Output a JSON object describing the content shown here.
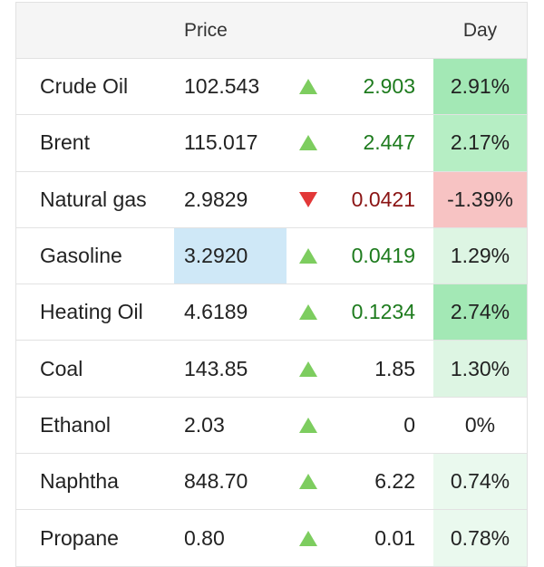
{
  "header": {
    "price_label": "Price",
    "day_label": "Day"
  },
  "colors": {
    "up_text": "#1e7b1e",
    "down_text": "#8b1414",
    "up_arrow": "#7dcd5f",
    "down_arrow": "#e23838",
    "highlight_price": "#cfe8f7",
    "positive_strong": "#a3e8b5",
    "negative": "#f7c3c3"
  },
  "rows": [
    {
      "name": "Crude Oil",
      "price": "102.543",
      "direction": "up",
      "change": "2.903",
      "day": "2.91%"
    },
    {
      "name": "Brent",
      "price": "115.017",
      "direction": "up",
      "change": "2.447",
      "day": "2.17%"
    },
    {
      "name": "Natural gas",
      "price": "2.9829",
      "direction": "down",
      "change": "0.0421",
      "day": "-1.39%"
    },
    {
      "name": "Gasoline",
      "price": "3.2920",
      "direction": "up",
      "change": "0.0419",
      "day": "1.29%"
    },
    {
      "name": "Heating Oil",
      "price": "4.6189",
      "direction": "up",
      "change": "0.1234",
      "day": "2.74%"
    },
    {
      "name": "Coal",
      "price": "143.85",
      "direction": "up",
      "change": "1.85",
      "day": "1.30%"
    },
    {
      "name": "Ethanol",
      "price": "2.03",
      "direction": "up",
      "change": "0",
      "day": "0%"
    },
    {
      "name": "Naphtha",
      "price": "848.70",
      "direction": "up",
      "change": "6.22",
      "day": "0.74%"
    },
    {
      "name": "Propane",
      "price": "0.80",
      "direction": "up",
      "change": "0.01",
      "day": "0.78%"
    }
  ]
}
